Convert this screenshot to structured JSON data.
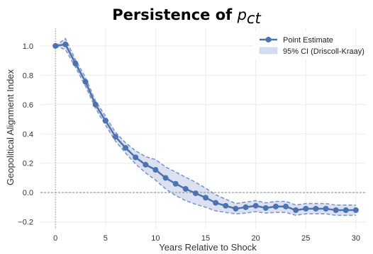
{
  "chart_data": {
    "type": "line",
    "title": {
      "prefix": "Persistence of ",
      "symbol": "p",
      "subscript": "ct"
    },
    "xlabel": "Years Relative to Shock",
    "ylabel": "Geopolitical Alignment Index",
    "xlim": [
      -1.5,
      31
    ],
    "ylim": [
      -0.25,
      1.12
    ],
    "xticks": [
      0,
      5,
      10,
      15,
      20,
      25,
      30
    ],
    "yticks": [
      -0.2,
      0.0,
      0.2,
      0.4,
      0.6,
      0.8,
      1.0
    ],
    "ytick_labels": [
      "−0.2",
      "0.0",
      "0.2",
      "0.4",
      "0.6",
      "0.8",
      "1.0"
    ],
    "grid": true,
    "reference_lines": {
      "x": 0,
      "y": 0
    },
    "legend": {
      "position": "top-right",
      "entries": [
        "Point Estimate",
        "95% CI (Driscoll-Kraay)"
      ]
    },
    "colors": {
      "line": "#4c72b0",
      "band": "#d5dcef"
    },
    "x": [
      0,
      1,
      2,
      3,
      4,
      5,
      6,
      7,
      8,
      9,
      10,
      11,
      12,
      13,
      14,
      15,
      16,
      17,
      18,
      19,
      20,
      21,
      22,
      23,
      24,
      25,
      26,
      27,
      28,
      29,
      30
    ],
    "series": [
      {
        "name": "Point Estimate",
        "values": [
          1.0,
          1.01,
          0.88,
          0.755,
          0.6,
          0.49,
          0.38,
          0.305,
          0.24,
          0.19,
          0.155,
          0.1,
          0.06,
          0.025,
          -0.005,
          -0.035,
          -0.07,
          -0.09,
          -0.11,
          -0.1,
          -0.09,
          -0.105,
          -0.095,
          -0.095,
          -0.12,
          -0.11,
          -0.11,
          -0.11,
          -0.12,
          -0.12,
          -0.12
        ]
      },
      {
        "name": "95% CI (Driscoll-Kraay)",
        "lower": [
          1.0,
          0.975,
          0.855,
          0.725,
          0.575,
          0.46,
          0.35,
          0.27,
          0.195,
          0.135,
          0.085,
          0.025,
          -0.02,
          -0.055,
          -0.08,
          -0.1,
          -0.125,
          -0.135,
          -0.145,
          -0.14,
          -0.13,
          -0.14,
          -0.135,
          -0.135,
          -0.155,
          -0.145,
          -0.145,
          -0.145,
          -0.155,
          -0.155,
          -0.155
        ],
        "upper": [
          1.0,
          1.05,
          0.905,
          0.785,
          0.625,
          0.52,
          0.41,
          0.34,
          0.285,
          0.245,
          0.225,
          0.175,
          0.14,
          0.105,
          0.07,
          0.03,
          -0.015,
          -0.045,
          -0.075,
          -0.065,
          -0.055,
          -0.07,
          -0.06,
          -0.06,
          -0.085,
          -0.075,
          -0.075,
          -0.075,
          -0.085,
          -0.085,
          -0.085
        ]
      }
    ]
  }
}
